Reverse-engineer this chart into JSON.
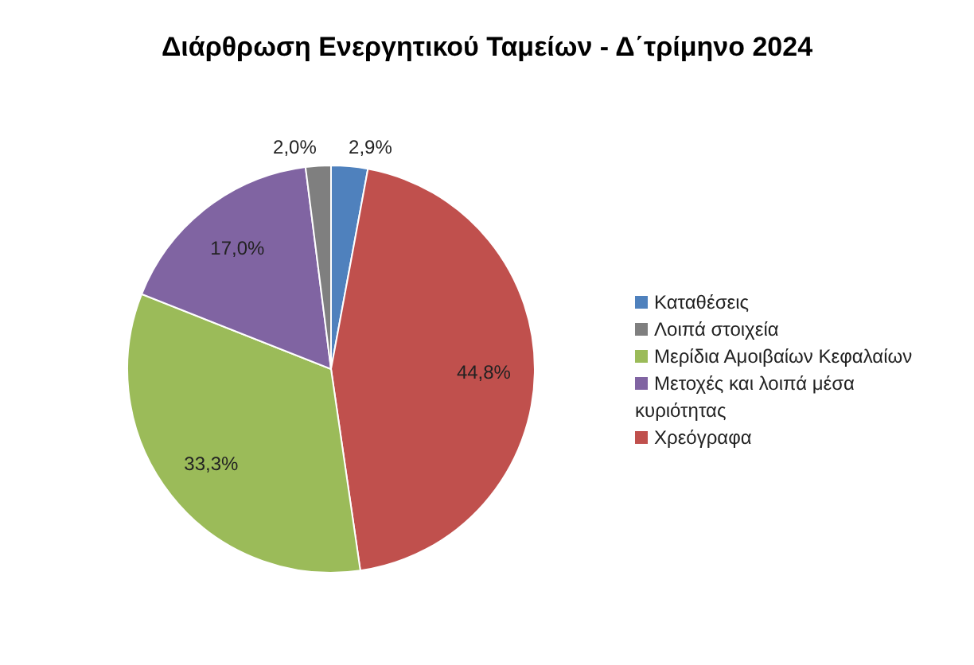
{
  "chart_data": {
    "type": "pie",
    "title": "Διάρθρωση Ενεργητικού Ταμείων - Δ΄τρίμηνο 2024",
    "categories": [
      "Καταθέσεις",
      "Χρεόγραφα",
      "Μερίδια Αμοιβαίων Κεφαλαίων",
      "Μετοχές και λοιπά μέσα κυριότητας",
      "Λοιπά στοιχεία"
    ],
    "values": [
      2.9,
      44.8,
      33.3,
      17.0,
      2.0
    ],
    "value_labels": [
      "2,9%",
      "44,8%",
      "33,3%",
      "17,0%",
      "2,0%"
    ],
    "colors": [
      "#4f81bd",
      "#c0504d",
      "#9bbb59",
      "#8064a2",
      "#7f7f7f"
    ],
    "legend": "right"
  }
}
